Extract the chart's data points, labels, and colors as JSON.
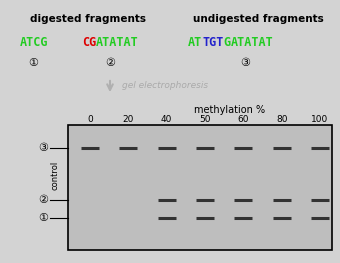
{
  "bg_color": "#d3d3d3",
  "title_digested": "digested fragments",
  "title_undigested": "undigested fragments",
  "arrow_color": "#b0b0b0",
  "gel_electrophoresis_text": "gel electrophoresis",
  "gel_electrophoresis_color": "#aaaaaa",
  "methylation_label": "methylation %",
  "control_label": "control",
  "columns": [
    "0",
    "20",
    "40",
    "50",
    "60",
    "80",
    "100"
  ],
  "row3_dash_cols": [
    0,
    1,
    2,
    3,
    4,
    5,
    6
  ],
  "row2_dash_cols": [
    2,
    3,
    4,
    5,
    6
  ],
  "row1_dash_cols": [
    2,
    3,
    4,
    5,
    6
  ],
  "dash_color": "#333333",
  "gel_box_color": "#bebebe",
  "gel_border_color": "#000000",
  "text_color": "#000000",
  "seq1": [
    [
      "ATCG",
      "#22cc22"
    ]
  ],
  "seq2": [
    [
      "CG",
      "#dd0000"
    ],
    [
      "ATATAT",
      "#22cc22"
    ]
  ],
  "seq3": [
    [
      "AT",
      "#22cc22"
    ],
    [
      "TGT",
      "#2222cc"
    ],
    [
      "G",
      "#22cc22"
    ],
    [
      "ATATAT",
      "#22cc22"
    ]
  ]
}
